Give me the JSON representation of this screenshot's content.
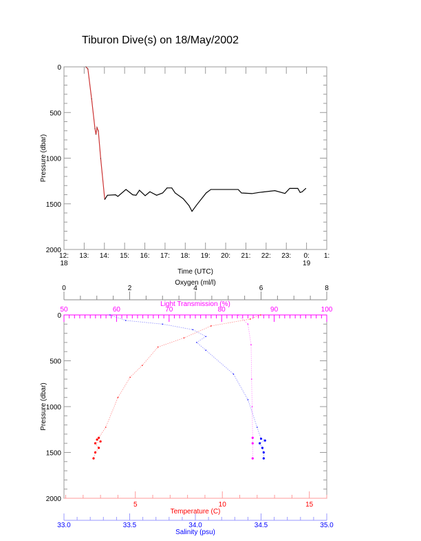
{
  "title": "Tiburon Dive(s) on 18/May/2002",
  "colors": {
    "axis": "#000000",
    "frame": "#999999",
    "temperature": "#ff0000",
    "salinity": "#0000ff",
    "light": "#ff00ff",
    "oxygen": "#000000",
    "dive": "#000000",
    "descent": "#cc3333"
  },
  "chart_data": [
    {
      "type": "line",
      "xlabel": "Time (UTC)",
      "ylabel": "Pressure (dbar)",
      "ylim": [
        2000,
        0
      ],
      "xlim": [
        "12:00",
        "25:00"
      ],
      "x_ticks": [
        "12:",
        "13:",
        "14:",
        "15:",
        "16:",
        "17:",
        "18:",
        "19:",
        "20:",
        "21:",
        "22:",
        "23:",
        "0:",
        "1:"
      ],
      "x_date_labels": [
        {
          "tick": "12:",
          "label": "18"
        },
        {
          "tick": "0:",
          "label": "19"
        }
      ],
      "y_ticks": [
        "0",
        "500",
        "1000",
        "1500",
        "2000"
      ],
      "series": [
        {
          "time": [
            "13:05",
            "13:11",
            "13:22",
            "13:32",
            "13:35",
            "13:38",
            "13:42",
            "13:49",
            "14:01",
            "14:09",
            "14:33",
            "14:40",
            "15:04",
            "15:24",
            "15:34",
            "15:44",
            "16:01",
            "16:15",
            "16:35",
            "16:53",
            "17:06",
            "17:20",
            "17:30",
            "17:54",
            "18:11",
            "18:20",
            "18:35",
            "19:02",
            "19:16",
            "20:37",
            "20:47",
            "21:18",
            "21:38",
            "22:26",
            "22:56",
            "23:10",
            "23:34",
            "23:41",
            "23:47",
            "23:58"
          ],
          "pressure": [
            0,
            23,
            350,
            677,
            740,
            664,
            702,
            1004,
            1452,
            1406,
            1401,
            1419,
            1343,
            1401,
            1406,
            1351,
            1411,
            1368,
            1406,
            1381,
            1326,
            1326,
            1381,
            1444,
            1519,
            1582,
            1507,
            1381,
            1343,
            1343,
            1381,
            1388,
            1376,
            1356,
            1386,
            1331,
            1331,
            1376,
            1368,
            1331
          ]
        }
      ]
    },
    {
      "type": "line",
      "ylabel": "Pressure (dbar)",
      "ylim": [
        2000,
        0
      ],
      "y_ticks": [
        "0",
        "500",
        "1000",
        "1500",
        "2000"
      ],
      "axes": {
        "oxygen": {
          "label": "Oxygen (ml/l)",
          "range": [
            0,
            8
          ],
          "ticks": [
            "0",
            "2",
            "4",
            "6",
            "8"
          ]
        },
        "light": {
          "label": "Light Transmission (%)",
          "range": [
            50,
            100
          ],
          "ticks": [
            "50",
            "60",
            "70",
            "80",
            "90",
            "100"
          ]
        },
        "temperature": {
          "label": "Temperature (C)",
          "range": [
            0.9,
            16.0
          ],
          "ticks": [
            "5",
            "10",
            "15"
          ]
        },
        "salinity": {
          "label": "Salinity (psu)",
          "range": [
            33.0,
            35.0
          ],
          "ticks": [
            "33.0",
            "33.5",
            "34.0",
            "34.5",
            "35.0"
          ]
        }
      },
      "series": [
        {
          "axis": "temperature",
          "pressure": [
            0,
            45,
            120,
            250,
            350,
            550,
            680,
            900,
            1225,
            1340,
            1360,
            1380,
            1400,
            1450,
            1500,
            1565
          ],
          "values": [
            12.2,
            11.6,
            9.35,
            7.8,
            6.3,
            5.4,
            4.7,
            4.0,
            3.3,
            2.9,
            2.8,
            3.0,
            2.7,
            2.9,
            2.7,
            2.6
          ]
        },
        {
          "axis": "salinity",
          "pressure": [
            0,
            60,
            100,
            160,
            235,
            300,
            385,
            645,
            925,
            1225,
            1350,
            1370,
            1400,
            1450,
            1500,
            1565
          ],
          "values": [
            33.35,
            33.47,
            33.75,
            33.98,
            34.08,
            34.01,
            34.08,
            34.29,
            34.4,
            34.47,
            34.5,
            34.53,
            34.49,
            34.51,
            34.52,
            34.52
          ]
        },
        {
          "axis": "light",
          "pressure": [
            0,
            100,
            325,
            700,
            1000,
            1340,
            1400,
            1565
          ],
          "values": [
            83.1,
            85.0,
            85.6,
            85.7,
            85.8,
            85.9,
            85.9,
            85.9
          ]
        }
      ]
    }
  ]
}
